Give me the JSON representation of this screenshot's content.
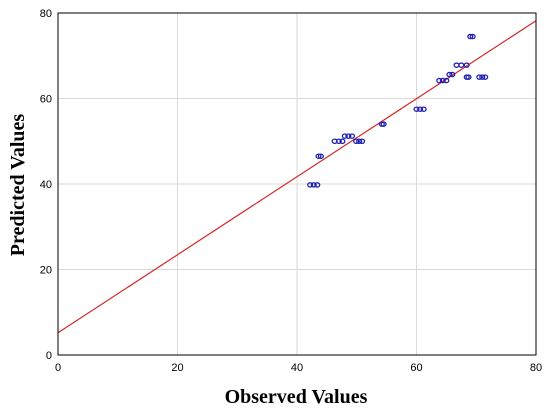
{
  "chart_data": {
    "type": "scatter",
    "xlabel": "Observed Values",
    "ylabel": "Predicted Values",
    "xlim": [
      0,
      80
    ],
    "ylim": [
      0,
      80
    ],
    "x_ticks": [
      0,
      20,
      40,
      60,
      80
    ],
    "y_ticks": [
      0,
      20,
      40,
      60,
      80
    ],
    "grid": true,
    "colors": {
      "points": "#1f1fb4",
      "fit_line": "#d62728",
      "grid": "#d9d9d9",
      "frame": "#000000"
    },
    "fit_line": {
      "x": [
        0,
        80
      ],
      "y": [
        5.2,
        78.2
      ]
    },
    "series": [
      {
        "points": [
          {
            "x": 42.2,
            "y": 39.8
          },
          {
            "x": 42.8,
            "y": 39.8
          },
          {
            "x": 43.4,
            "y": 39.8
          },
          {
            "x": 43.6,
            "y": 46.5
          },
          {
            "x": 44.0,
            "y": 46.5
          },
          {
            "x": 46.3,
            "y": 50.0
          },
          {
            "x": 47.0,
            "y": 50.0
          },
          {
            "x": 47.6,
            "y": 50.0
          },
          {
            "x": 48.0,
            "y": 51.2
          },
          {
            "x": 48.6,
            "y": 51.2
          },
          {
            "x": 49.2,
            "y": 51.2
          },
          {
            "x": 49.9,
            "y": 50.0
          },
          {
            "x": 50.4,
            "y": 50.0
          },
          {
            "x": 50.9,
            "y": 50.0
          },
          {
            "x": 54.2,
            "y": 54.0
          },
          {
            "x": 54.5,
            "y": 54.0
          },
          {
            "x": 60.0,
            "y": 57.5
          },
          {
            "x": 60.6,
            "y": 57.5
          },
          {
            "x": 61.2,
            "y": 57.5
          },
          {
            "x": 63.8,
            "y": 64.2
          },
          {
            "x": 64.4,
            "y": 64.2
          },
          {
            "x": 65.0,
            "y": 64.2
          },
          {
            "x": 65.5,
            "y": 65.6
          },
          {
            "x": 66.0,
            "y": 65.6
          },
          {
            "x": 66.7,
            "y": 67.8
          },
          {
            "x": 67.5,
            "y": 67.8
          },
          {
            "x": 68.4,
            "y": 67.8
          },
          {
            "x": 68.4,
            "y": 65.0
          },
          {
            "x": 68.7,
            "y": 65.0
          },
          {
            "x": 69.0,
            "y": 74.5
          },
          {
            "x": 69.4,
            "y": 74.5
          },
          {
            "x": 70.5,
            "y": 65.0
          },
          {
            "x": 71.0,
            "y": 65.0
          },
          {
            "x": 71.5,
            "y": 65.0
          }
        ]
      }
    ]
  }
}
